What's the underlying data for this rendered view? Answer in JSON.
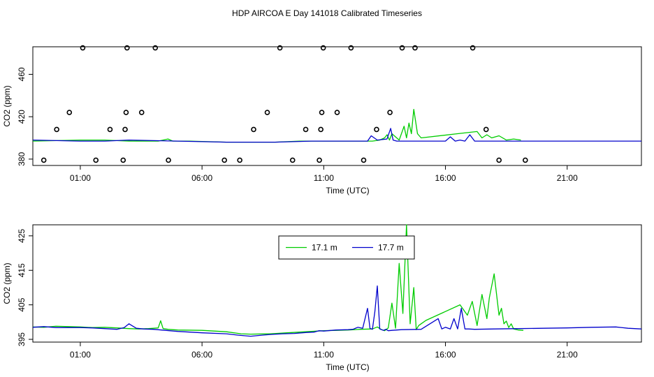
{
  "title": "HDP AIRCOA E  Day 141018  Calibrated Timeseries",
  "colors": {
    "green": "#00cc00",
    "blue": "#0000cc",
    "points": "#000000",
    "axis": "#000000"
  },
  "chart_data": [
    {
      "type": "scatter+line",
      "name": "top-panel",
      "xlabel": "Time (UTC)",
      "ylabel": "CO2 (ppm)",
      "xlim": [
        -0.95,
        24.05
      ],
      "ylim": [
        374,
        486
      ],
      "xticks": [
        1,
        6,
        11,
        16,
        21
      ],
      "xtick_labels": [
        "01:00",
        "06:00",
        "11:00",
        "16:00",
        "21:00"
      ],
      "yticks": [
        380,
        420,
        460
      ],
      "ytick_labels": [
        "380",
        "420",
        "460"
      ],
      "points": [
        [
          -0.5,
          379
        ],
        [
          0.03,
          408
        ],
        [
          0.55,
          424
        ],
        [
          1.1,
          485
        ],
        [
          1.64,
          379
        ],
        [
          2.22,
          408
        ],
        [
          2.76,
          379
        ],
        [
          2.84,
          408
        ],
        [
          2.88,
          424
        ],
        [
          2.92,
          485
        ],
        [
          3.52,
          424
        ],
        [
          4.08,
          485
        ],
        [
          4.62,
          379
        ],
        [
          6.92,
          379
        ],
        [
          7.55,
          379
        ],
        [
          8.12,
          408
        ],
        [
          8.68,
          424
        ],
        [
          9.2,
          485
        ],
        [
          9.72,
          379
        ],
        [
          10.26,
          408
        ],
        [
          10.82,
          379
        ],
        [
          10.88,
          408
        ],
        [
          10.92,
          424
        ],
        [
          10.98,
          485
        ],
        [
          11.55,
          424
        ],
        [
          12.12,
          485
        ],
        [
          12.64,
          379
        ],
        [
          13.17,
          408
        ],
        [
          13.72,
          424
        ],
        [
          14.22,
          485
        ],
        [
          14.75,
          485
        ],
        [
          17.12,
          485
        ],
        [
          17.67,
          408
        ],
        [
          18.2,
          379
        ],
        [
          19.28,
          379
        ]
      ],
      "series": [
        {
          "name": "17.1 m",
          "x": [
            -0.95,
            1.0,
            2.0,
            3.0,
            4.2,
            4.6,
            4.8,
            5.5,
            7.0,
            8.0,
            9.0,
            10.0,
            11.0,
            12.0,
            13.0,
            13.3,
            13.5,
            13.6,
            13.7,
            13.8,
            14.1,
            14.3,
            14.4,
            14.5,
            14.6,
            14.7,
            14.85,
            15.0,
            16.5,
            17.3,
            17.5,
            17.7,
            17.9,
            18.2,
            18.5,
            18.8,
            19.1
          ],
          "y": [
            397,
            398,
            398,
            397,
            397,
            399,
            397,
            397,
            396,
            396,
            396,
            397,
            397,
            397,
            397,
            398,
            400,
            403,
            398,
            404,
            398,
            411,
            400,
            414,
            404,
            427,
            404,
            400,
            404,
            406,
            400,
            403,
            400,
            402,
            398,
            399,
            398
          ]
        },
        {
          "name": "17.7 m",
          "x": [
            -0.95,
            1.0,
            2.0,
            3.0,
            5.0,
            7.0,
            9.0,
            10.5,
            11.0,
            12.0,
            12.8,
            12.95,
            13.2,
            13.6,
            13.75,
            13.85,
            14.0,
            15.5,
            16.0,
            16.2,
            16.4,
            16.6,
            16.8,
            17.0,
            17.2,
            18.5,
            20.0,
            22.0,
            24.05
          ],
          "y": [
            398,
            397,
            397,
            398,
            397,
            396,
            396,
            397,
            397,
            397,
            397,
            402,
            398,
            399,
            409,
            398,
            397,
            397,
            397,
            401,
            397,
            398,
            397,
            403,
            397,
            397,
            397,
            397,
            397
          ]
        }
      ]
    },
    {
      "type": "line",
      "name": "bottom-panel",
      "xlabel": "Time (UTC)",
      "ylabel": "CO2 (ppm)",
      "xlim": [
        -0.95,
        24.05
      ],
      "ylim": [
        394.2,
        428.2
      ],
      "xticks": [
        1,
        6,
        11,
        16,
        21
      ],
      "xtick_labels": [
        "01:00",
        "06:00",
        "11:00",
        "16:00",
        "21:00"
      ],
      "yticks": [
        395,
        405,
        415,
        425
      ],
      "ytick_labels": [
        "395",
        "405",
        "415",
        "425"
      ],
      "legend": {
        "position": "top-center",
        "entries": [
          "17.1 m",
          "17.7 m"
        ]
      },
      "series": [
        {
          "name": "17.1 m",
          "x": [
            -0.95,
            -0.5,
            0,
            0.5,
            1.0,
            1.5,
            2.0,
            2.5,
            3.0,
            3.4,
            3.8,
            4.2,
            4.3,
            4.4,
            4.6,
            5.0,
            6.0,
            7.0,
            7.6,
            8.0,
            8.8,
            9.5,
            10.0,
            10.5,
            11.0,
            11.5,
            12.0,
            12.5,
            13.0,
            13.2,
            13.35,
            13.5,
            13.65,
            13.8,
            13.95,
            14.1,
            14.25,
            14.4,
            14.55,
            14.7,
            14.8,
            14.9,
            15.0,
            15.2,
            16.6,
            16.9,
            17.1,
            17.3,
            17.5,
            17.7,
            17.8,
            18.0,
            18.2,
            18.3,
            18.4,
            18.5,
            18.6,
            18.7,
            18.8,
            19.0,
            19.2
          ],
          "y": [
            398.6,
            398.5,
            398.8,
            398.7,
            398.6,
            398.4,
            398.5,
            398.3,
            398.1,
            398.0,
            398.1,
            398.3,
            400.4,
            398.1,
            397.9,
            397.7,
            397.6,
            397.2,
            396.6,
            396.5,
            396.6,
            396.9,
            397.1,
            397.3,
            397.5,
            397.6,
            397.7,
            397.9,
            398.0,
            398.6,
            397.9,
            397.5,
            398.3,
            405.5,
            398.2,
            417.0,
            402.5,
            428.2,
            399.5,
            410.0,
            397.8,
            399.0,
            399.5,
            400.5,
            405.0,
            402.0,
            406.0,
            399.0,
            408.0,
            401.0,
            407.0,
            414.0,
            402.0,
            404.0,
            399.5,
            400.3,
            398.4,
            399.5,
            398.0,
            397.7,
            397.6
          ]
        },
        {
          "name": "17.7 m",
          "x": [
            -0.95,
            -0.5,
            0,
            0.5,
            1.0,
            1.5,
            2.0,
            2.5,
            2.8,
            3.0,
            3.3,
            3.6,
            4.0,
            5.0,
            6.0,
            7.0,
            7.5,
            8.0,
            8.3,
            8.8,
            9.3,
            9.8,
            10.3,
            10.6,
            10.8,
            11.0,
            11.5,
            12.0,
            12.2,
            12.4,
            12.6,
            12.8,
            12.9,
            13.0,
            13.1,
            13.2,
            13.3,
            13.45,
            13.55,
            13.65,
            13.8,
            14.2,
            15.0,
            15.7,
            15.85,
            16.0,
            16.2,
            16.35,
            16.5,
            16.65,
            16.8,
            16.95,
            17.2,
            18.0,
            19.0,
            20.0,
            21.0,
            22.0,
            23.0,
            23.5,
            24.05
          ],
          "y": [
            398.5,
            398.7,
            398.4,
            398.4,
            398.4,
            398.3,
            398.1,
            397.9,
            398.4,
            399.5,
            398.2,
            398.0,
            397.9,
            397.3,
            396.9,
            396.6,
            396.2,
            395.9,
            396.1,
            396.4,
            396.6,
            396.7,
            397.0,
            397.1,
            397.5,
            397.4,
            397.7,
            397.8,
            397.9,
            398.5,
            398.2,
            404.0,
            398.2,
            397.9,
            403.0,
            410.5,
            398.0,
            397.6,
            397.9,
            397.5,
            397.6,
            397.8,
            397.9,
            401.0,
            398.0,
            398.5,
            398.0,
            401.0,
            398.0,
            404.0,
            398.0,
            398.0,
            397.9,
            398.0,
            398.1,
            398.2,
            398.3,
            398.5,
            398.6,
            398.2,
            398.0
          ]
        }
      ]
    }
  ]
}
